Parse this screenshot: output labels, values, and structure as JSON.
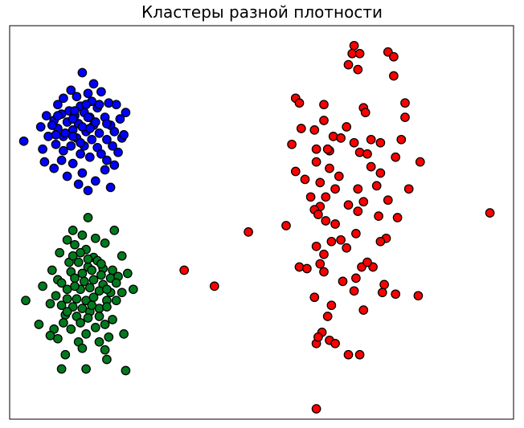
{
  "chart_data": {
    "type": "scatter",
    "title": "Кластеры разной плотности",
    "xlabel": "",
    "ylabel": "",
    "xlim": [
      -12.35,
      14.35
    ],
    "ylim": [
      -16.35,
      8.35
    ],
    "axes_visible": false,
    "grid": false,
    "series": [
      {
        "color": "#0000ff",
        "points": [
          [
            -8.5,
            5.4
          ],
          [
            -7.9,
            4.7
          ],
          [
            -9.1,
            4.3
          ],
          [
            -8.2,
            4.1
          ],
          [
            -7.5,
            4.2
          ],
          [
            -9.5,
            3.8
          ],
          [
            -8.8,
            3.9
          ],
          [
            -8.0,
            3.6
          ],
          [
            -7.1,
            3.5
          ],
          [
            -6.7,
            3.4
          ],
          [
            -9.8,
            3.4
          ],
          [
            -8.6,
            3.3
          ],
          [
            -7.7,
            3.2
          ],
          [
            -9.2,
            3.0
          ],
          [
            -8.4,
            2.9
          ],
          [
            -10.4,
            2.7
          ],
          [
            -9.6,
            2.8
          ],
          [
            -8.9,
            2.7
          ],
          [
            -8.1,
            2.6
          ],
          [
            -7.3,
            2.6
          ],
          [
            -6.5,
            2.5
          ],
          [
            -10.0,
            2.4
          ],
          [
            -9.3,
            2.3
          ],
          [
            -8.7,
            2.2
          ],
          [
            -7.9,
            2.1
          ],
          [
            -7.0,
            2.1
          ],
          [
            -10.7,
            2.0
          ],
          [
            -9.8,
            1.9
          ],
          [
            -9.0,
            1.8
          ],
          [
            -8.3,
            1.7
          ],
          [
            -7.6,
            1.6
          ],
          [
            -6.8,
            1.7
          ],
          [
            -10.3,
            1.4
          ],
          [
            -9.5,
            1.4
          ],
          [
            -8.8,
            1.3
          ],
          [
            -8.0,
            1.2
          ],
          [
            -7.2,
            1.2
          ],
          [
            -6.4,
            1.3
          ],
          [
            -11.6,
            1.1
          ],
          [
            -9.9,
            0.9
          ],
          [
            -9.1,
            0.8
          ],
          [
            -8.4,
            0.8
          ],
          [
            -7.7,
            0.7
          ],
          [
            -6.9,
            0.8
          ],
          [
            -10.6,
            0.6
          ],
          [
            -8.6,
            0.3
          ],
          [
            -7.5,
            0.3
          ],
          [
            -6.6,
            0.4
          ],
          [
            -9.6,
            -0.1
          ],
          [
            -8.1,
            0.1
          ],
          [
            -7.2,
            -0.1
          ],
          [
            -10.5,
            -0.2
          ],
          [
            -9.0,
            -0.3
          ],
          [
            -6.8,
            -0.4
          ],
          [
            -10.0,
            -0.6
          ],
          [
            -8.5,
            -0.9
          ],
          [
            -7.3,
            -0.7
          ],
          [
            -9.3,
            -1.1
          ],
          [
            -7.8,
            -1.4
          ],
          [
            -8.7,
            -1.6
          ],
          [
            -8.2,
            -2.0
          ],
          [
            -7.0,
            -1.8
          ],
          [
            -9.4,
            1.6
          ],
          [
            -8.5,
            2.0
          ],
          [
            -9.0,
            1.4
          ],
          [
            -7.6,
            3.4
          ],
          [
            -8.3,
            3.4
          ],
          [
            -8.9,
            3.0
          ],
          [
            -8.2,
            2.6
          ],
          [
            -9.8,
            2.7
          ],
          [
            -9.0,
            2.5
          ],
          [
            -7.8,
            2.3
          ],
          [
            -7.2,
            2.2
          ],
          [
            -6.2,
            2.9
          ],
          [
            -6.3,
            1.5
          ],
          [
            -9.9,
            1.5
          ],
          [
            -10.1,
            2.1
          ],
          [
            -9.5,
            0.5
          ],
          [
            -8.1,
            1.9
          ],
          [
            -8.6,
            1.0
          ]
        ]
      },
      {
        "color": "#007a1f",
        "points": [
          [
            -8.2,
            -3.7
          ],
          [
            -9.0,
            -4.5
          ],
          [
            -6.8,
            -4.5
          ],
          [
            -8.5,
            -4.8
          ],
          [
            -9.3,
            -5.1
          ],
          [
            -7.8,
            -5.0
          ],
          [
            -8.9,
            -5.4
          ],
          [
            -8.3,
            -5.7
          ],
          [
            -7.3,
            -5.3
          ],
          [
            -9.7,
            -5.9
          ],
          [
            -8.6,
            -5.9
          ],
          [
            -7.9,
            -6.2
          ],
          [
            -6.4,
            -6.1
          ],
          [
            -9.2,
            -6.5
          ],
          [
            -8.7,
            -6.5
          ],
          [
            -7.7,
            -6.4
          ],
          [
            -8.2,
            -6.8
          ],
          [
            -7.4,
            -6.9
          ],
          [
            -6.9,
            -7.0
          ],
          [
            -10.1,
            -7.0
          ],
          [
            -9.1,
            -7.1
          ],
          [
            -8.5,
            -7.2
          ],
          [
            -7.5,
            -7.3
          ],
          [
            -7.0,
            -7.5
          ],
          [
            -6.6,
            -7.4
          ],
          [
            -6.1,
            -7.2
          ],
          [
            -9.8,
            -7.6
          ],
          [
            -8.9,
            -7.5
          ],
          [
            -8.4,
            -7.7
          ],
          [
            -7.9,
            -7.6
          ],
          [
            -7.4,
            -7.9
          ],
          [
            -6.7,
            -7.8
          ],
          [
            -10.6,
            -8.0
          ],
          [
            -9.3,
            -8.2
          ],
          [
            -8.6,
            -8.2
          ],
          [
            -8.1,
            -8.1
          ],
          [
            -7.6,
            -8.3
          ],
          [
            -7.0,
            -8.4
          ],
          [
            -6.4,
            -8.4
          ],
          [
            -5.8,
            -8.2
          ],
          [
            -9.9,
            -8.6
          ],
          [
            -9.3,
            -8.8
          ],
          [
            -8.8,
            -8.8
          ],
          [
            -8.3,
            -8.9
          ],
          [
            -7.9,
            -8.7
          ],
          [
            -7.2,
            -8.9
          ],
          [
            -6.7,
            -8.9
          ],
          [
            -11.5,
            -8.9
          ],
          [
            -10.2,
            -9.1
          ],
          [
            -9.6,
            -9.2
          ],
          [
            -9.0,
            -9.3
          ],
          [
            -8.5,
            -9.4
          ],
          [
            -7.6,
            -9.4
          ],
          [
            -7.2,
            -9.3
          ],
          [
            -8.1,
            -9.6
          ],
          [
            -9.4,
            -9.8
          ],
          [
            -8.8,
            -9.9
          ],
          [
            -8.2,
            -10.0
          ],
          [
            -7.6,
            -9.9
          ],
          [
            -6.9,
            -10.1
          ],
          [
            -7.3,
            -10.4
          ],
          [
            -10.8,
            -10.4
          ],
          [
            -9.5,
            -10.3
          ],
          [
            -8.6,
            -10.3
          ],
          [
            -7.8,
            -10.6
          ],
          [
            -10.0,
            -10.7
          ],
          [
            -9.1,
            -10.7
          ],
          [
            -8.3,
            -11.0
          ],
          [
            -7.1,
            -11.2
          ],
          [
            -9.8,
            -11.3
          ],
          [
            -8.7,
            -11.5
          ],
          [
            -7.6,
            -11.5
          ],
          [
            -6.3,
            -11.0
          ],
          [
            -8.5,
            -11.9
          ],
          [
            -7.3,
            -12.0
          ],
          [
            -10.2,
            -11.1
          ],
          [
            -9.4,
            -12.3
          ],
          [
            -8.3,
            -13.2
          ],
          [
            -7.2,
            -12.6
          ],
          [
            -6.2,
            -13.3
          ],
          [
            -9.6,
            -13.2
          ],
          [
            -9.0,
            -6.1
          ],
          [
            -8.0,
            -7.0
          ],
          [
            -9.6,
            -7.8
          ],
          [
            -8.9,
            -8.0
          ],
          [
            -7.2,
            -8.2
          ],
          [
            -8.0,
            -9.2
          ],
          [
            -9.3,
            -9.6
          ],
          [
            -8.2,
            -6.3
          ],
          [
            -7.5,
            -6.6
          ]
        ]
      },
      {
        "color": "#ff0000",
        "points": [
          [
            5.9,
            7.1
          ],
          [
            5.8,
            6.6
          ],
          [
            6.2,
            6.6
          ],
          [
            7.7,
            6.7
          ],
          [
            8.0,
            6.4
          ],
          [
            5.6,
            5.9
          ],
          [
            6.1,
            5.6
          ],
          [
            8.0,
            5.2
          ],
          [
            2.8,
            3.8
          ],
          [
            3.0,
            3.5
          ],
          [
            4.3,
            3.4
          ],
          [
            8.6,
            3.5
          ],
          [
            6.4,
            3.2
          ],
          [
            6.5,
            2.9
          ],
          [
            8.6,
            2.6
          ],
          [
            4.3,
            2.4
          ],
          [
            5.5,
            2.0
          ],
          [
            3.1,
            1.9
          ],
          [
            3.8,
            1.8
          ],
          [
            4.8,
            1.4
          ],
          [
            5.2,
            1.3
          ],
          [
            8.4,
            1.2
          ],
          [
            5.9,
            1.0
          ],
          [
            7.3,
            1.0
          ],
          [
            2.6,
            0.9
          ],
          [
            3.9,
            0.6
          ],
          [
            4.6,
            0.5
          ],
          [
            6.2,
            0.4
          ],
          [
            6.6,
            0.3
          ],
          [
            8.1,
            0.1
          ],
          [
            9.4,
            -0.2
          ],
          [
            4.6,
            -0.6
          ],
          [
            6.8,
            -0.5
          ],
          [
            3.9,
            -0.2
          ],
          [
            4.5,
            0.6
          ],
          [
            7.3,
            -0.9
          ],
          [
            5.1,
            -1.1
          ],
          [
            3.3,
            -1.3
          ],
          [
            4.1,
            -1.5
          ],
          [
            7.1,
            -1.7
          ],
          [
            4.9,
            -1.9
          ],
          [
            6.1,
            -1.9
          ],
          [
            8.8,
            -1.9
          ],
          [
            3.6,
            -2.4
          ],
          [
            4.4,
            -2.4
          ],
          [
            7.7,
            -2.6
          ],
          [
            6.4,
            -2.7
          ],
          [
            5.6,
            -2.9
          ],
          [
            4.1,
            -3.0
          ],
          [
            3.8,
            -3.2
          ],
          [
            4.0,
            -3.5
          ],
          [
            4.4,
            -3.9
          ],
          [
            7.2,
            -3.6
          ],
          [
            8.2,
            -3.7
          ],
          [
            4.9,
            -4.1
          ],
          [
            2.3,
            -4.2
          ],
          [
            13.1,
            -3.4
          ],
          [
            0.3,
            -4.6
          ],
          [
            6.0,
            -4.7
          ],
          [
            7.6,
            -5.0
          ],
          [
            3.9,
            -5.5
          ],
          [
            5.2,
            -5.1
          ],
          [
            4.7,
            -5.2
          ],
          [
            5.5,
            -5.6
          ],
          [
            4.3,
            -6.0
          ],
          [
            7.3,
            -5.2
          ],
          [
            4.1,
            -6.6
          ],
          [
            6.9,
            -6.8
          ],
          [
            3.0,
            -6.8
          ],
          [
            3.4,
            -6.9
          ],
          [
            4.3,
            -7.1
          ],
          [
            6.0,
            -7.5
          ],
          [
            5.3,
            -7.7
          ],
          [
            7.5,
            -7.9
          ],
          [
            3.8,
            -8.7
          ],
          [
            4.7,
            -9.2
          ],
          [
            9.3,
            -8.6
          ],
          [
            5.9,
            -8.3
          ],
          [
            4.5,
            -9.9
          ],
          [
            6.4,
            -9.5
          ],
          [
            7.4,
            -8.4
          ],
          [
            8.1,
            -8.5
          ],
          [
            -1.5,
            -8.0
          ],
          [
            -3.1,
            -7.0
          ],
          [
            4.2,
            -10.9
          ],
          [
            4.6,
            -11.4
          ],
          [
            3.9,
            -11.6
          ],
          [
            4.9,
            -11.6
          ],
          [
            5.6,
            -12.3
          ],
          [
            3.9,
            -15.7
          ],
          [
            6.2,
            -12.3
          ],
          [
            4.0,
            -11.2
          ],
          [
            6.3,
            -6.8
          ],
          [
            6.6,
            -6.5
          ],
          [
            6.1,
            -3.3
          ],
          [
            2.8,
            -0.8
          ],
          [
            6.8,
            1.2
          ]
        ]
      }
    ]
  }
}
